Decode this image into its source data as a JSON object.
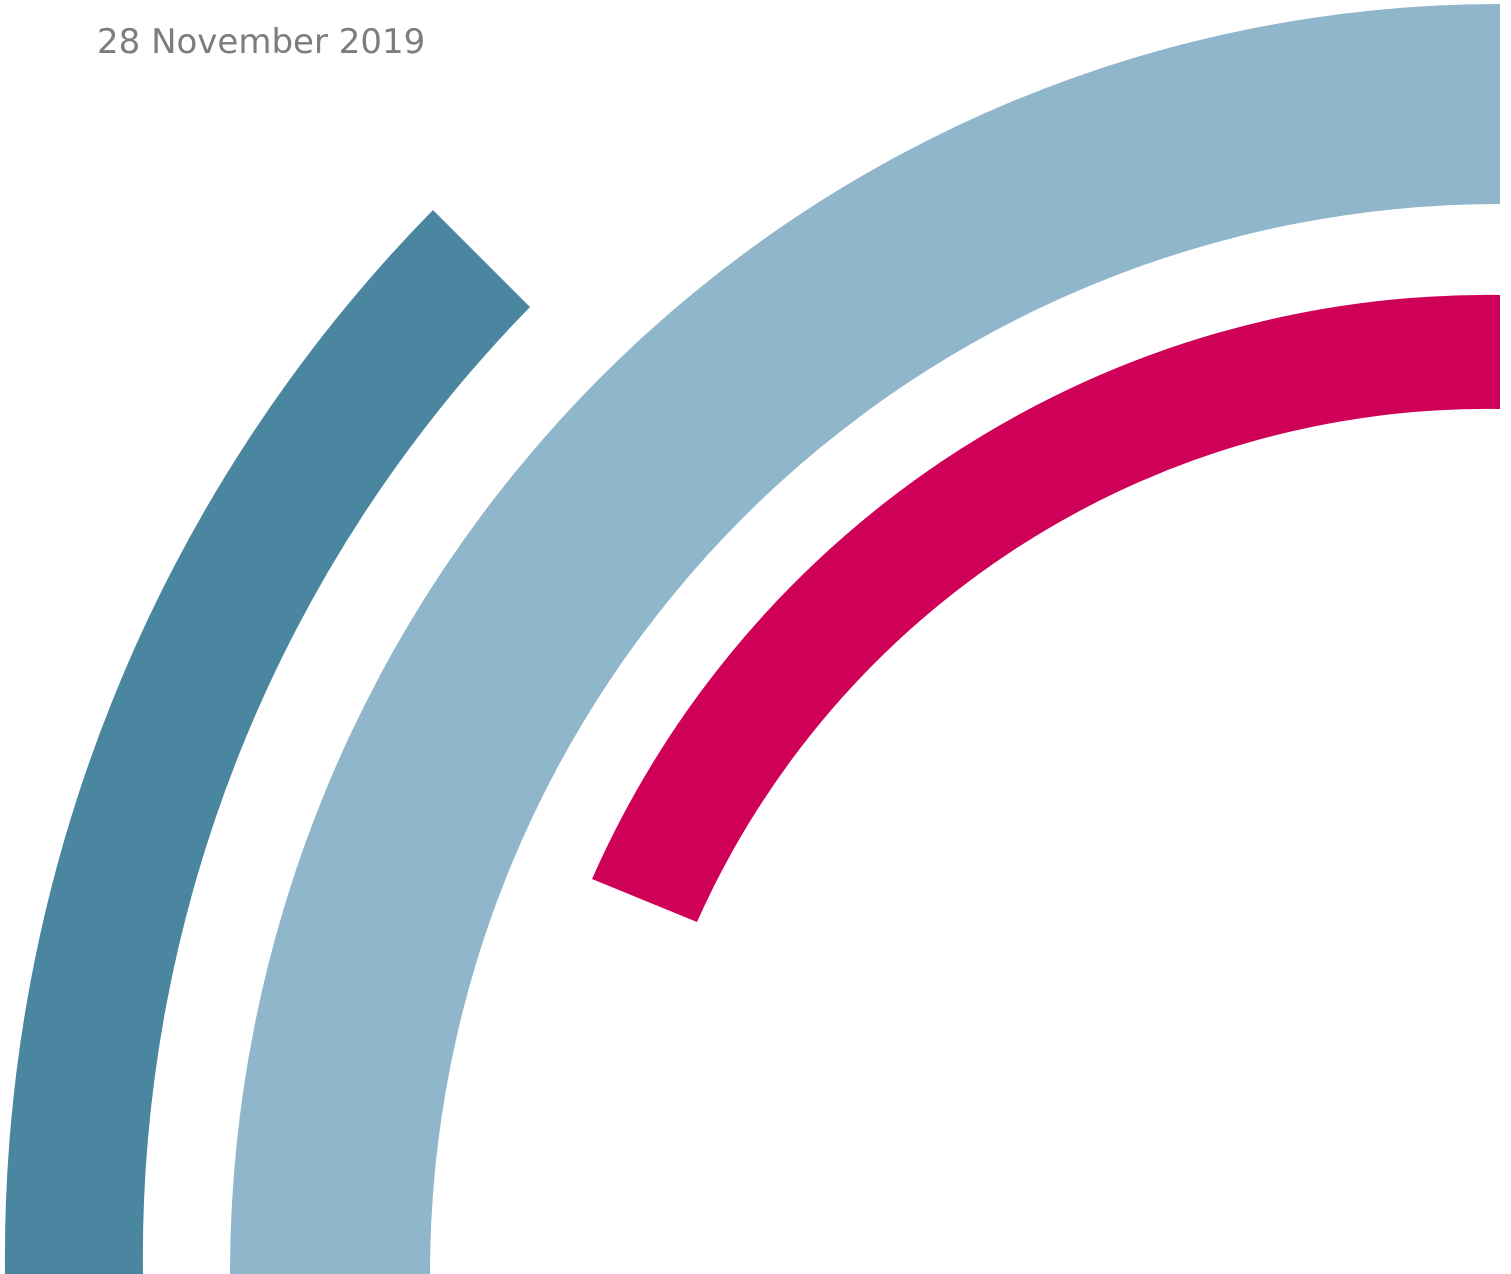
{
  "document": {
    "date": "28 November 2019"
  },
  "graphic": {
    "colors": {
      "outer_arc": "#4a869f",
      "middle_arc": "#8fb6ca",
      "inner_arc": "#cf0057",
      "background": "#ffffff",
      "date_text": "#7b7d80"
    }
  }
}
